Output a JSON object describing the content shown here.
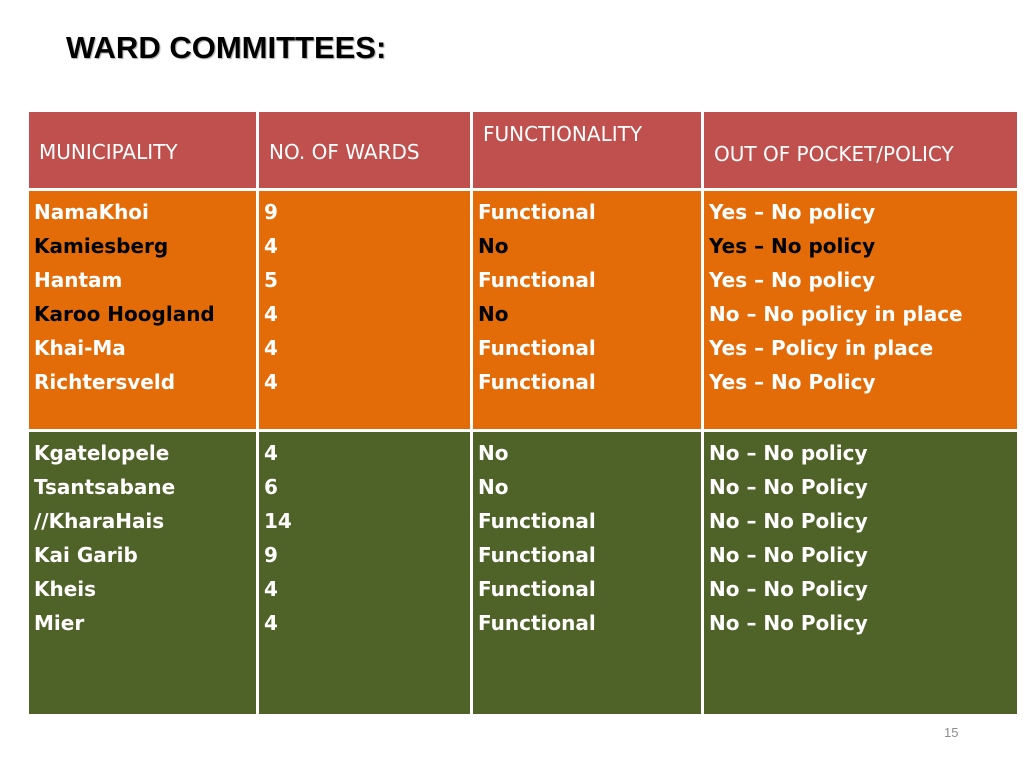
{
  "title": "WARD COMMITTEES:",
  "headers": {
    "municipality": "MUNICIPALITY",
    "wards": "NO. OF WARDS",
    "functionality": "FUNCTIONALITY",
    "policy": "OUT OF POCKET/POLICY"
  },
  "group1": {
    "color": "#e36c09",
    "municipalities": [
      "NamaKhoi",
      "Kamiesberg",
      "Hantam",
      "Karoo Hoogland",
      "Khai-Ma",
      "Richtersveld"
    ],
    "wards": [
      "9",
      "4",
      "5",
      "4",
      "4",
      "4"
    ],
    "functionality": [
      "Functional",
      "No",
      "Functional",
      "No",
      "Functional",
      "Functional"
    ],
    "policy": [
      "Yes – No policy",
      "Yes – No policy",
      "Yes – No policy",
      "No –  No policy in place",
      "Yes – Policy in place",
      "Yes – No Policy"
    ]
  },
  "group2": {
    "color": "#4f6228",
    "municipalities": [
      "Kgatelopele",
      "Tsantsabane",
      "//KharaHais",
      "Kai Garib",
      "Kheis",
      "Mier"
    ],
    "wards": [
      "4",
      "6",
      "14",
      "9",
      "4",
      "4"
    ],
    "functionality": [
      "No",
      "No",
      "Functional",
      "Functional",
      "Functional",
      "Functional"
    ],
    "policy": [
      "No – No policy",
      "No – No Policy",
      "No – No Policy",
      "No – No Policy",
      "No – No Policy",
      "No – No Policy"
    ]
  },
  "header_color": "#c0504d",
  "page_number": "15"
}
